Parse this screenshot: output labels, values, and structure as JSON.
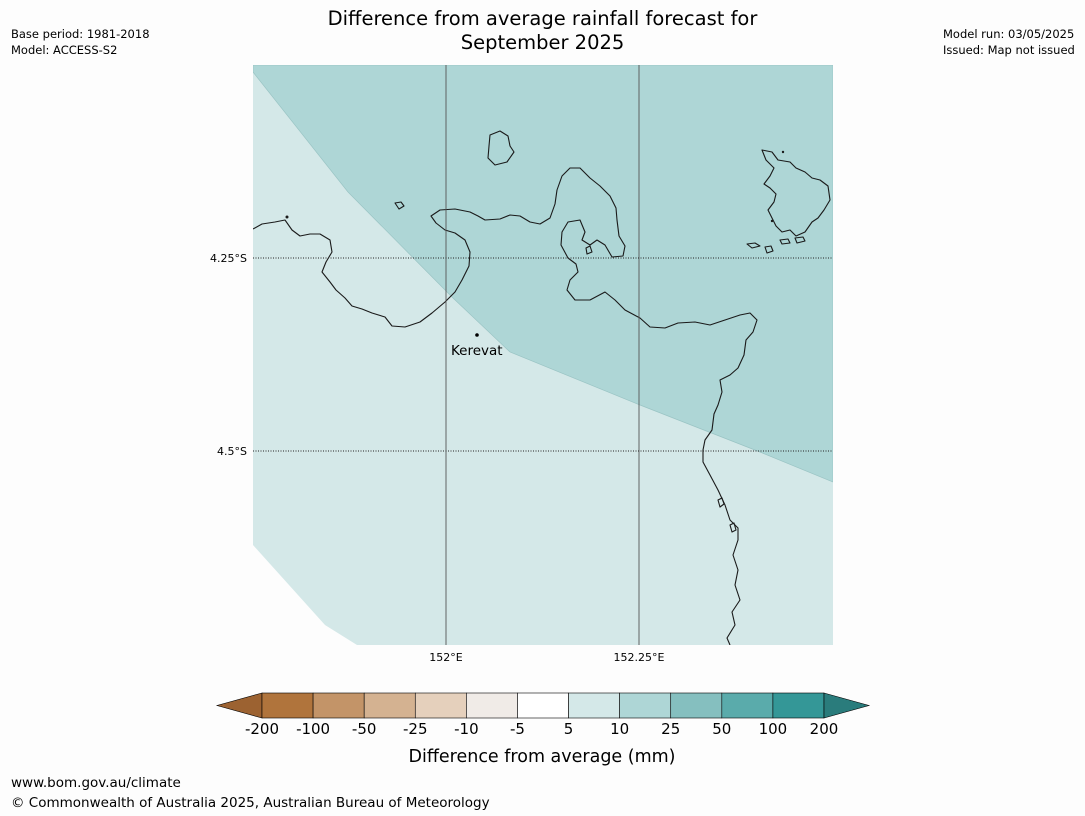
{
  "header": {
    "title_line1": "Difference from average rainfall forecast for",
    "title_line2": "September 2025",
    "base_period": "Base period: 1981-2018",
    "model": "Model: ACCESS-S2",
    "model_run": "Model run: 03/05/2025",
    "issued": "Issued: Map not issued"
  },
  "map": {
    "lat_labels": [
      "4.25°S",
      "4.5°S"
    ],
    "lon_labels": [
      "152°E",
      "152.25°E"
    ],
    "place": {
      "name": "Kerevat"
    },
    "colors": {
      "ocean_zone_5_10": "#d4e8e8",
      "zone_10_25": "#aed6d6",
      "coast": "#1a1a1a",
      "grid": "#555555"
    }
  },
  "colorbar": {
    "title": "Difference from average (mm)",
    "ticks": [
      "-200",
      "-100",
      "-50",
      "-25",
      "-10",
      "-5",
      "5",
      "10",
      "25",
      "50",
      "100",
      "200"
    ],
    "colors": [
      "#9c6231",
      "#b0743c",
      "#c39468",
      "#d4b291",
      "#e5d0bc",
      "#f0ebe7",
      "#ffffff",
      "#d4e8e8",
      "#aed6d6",
      "#85bfbf",
      "#5aabab",
      "#349797",
      "#2a7c7c"
    ]
  },
  "footer": {
    "url": "www.bom.gov.au/climate",
    "copyright": "© Commonwealth of Australia 2025, Australian Bureau of Meteorology"
  }
}
